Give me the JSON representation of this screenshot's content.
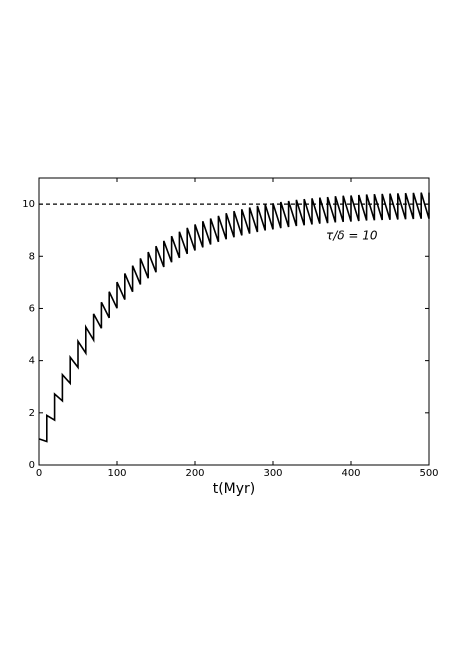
{
  "chart_data": {
    "type": "line",
    "xlabel": "t(Myr)",
    "annotation": "τ/δ = 10",
    "hline": 10,
    "xlim": [
      0,
      500
    ],
    "ylim": [
      0,
      11
    ],
    "xticks": [
      0,
      100,
      200,
      300,
      400,
      500
    ],
    "yticks": [
      0,
      2,
      4,
      6,
      8,
      10
    ],
    "series": [
      {
        "color": "#000000",
        "x": [
          0,
          10,
          10,
          20,
          20,
          30,
          30,
          40,
          40,
          50,
          50,
          60,
          60,
          70,
          70,
          80,
          80,
          90,
          90,
          100,
          100,
          110,
          110,
          120,
          120,
          130,
          130,
          140,
          140,
          150,
          150,
          160,
          160,
          170,
          170,
          180,
          180,
          190,
          190,
          200,
          200,
          210,
          210,
          220,
          220,
          230,
          230,
          240,
          240,
          250,
          250,
          260,
          260,
          270,
          270,
          280,
          280,
          290,
          290,
          300,
          300,
          310,
          310,
          320,
          320,
          330,
          330,
          340,
          340,
          350,
          350,
          360,
          360,
          370,
          370,
          380,
          380,
          390,
          390,
          400,
          400,
          410,
          410,
          420,
          420,
          430,
          430,
          440,
          440,
          450,
          450,
          460,
          460,
          470,
          470,
          480,
          480,
          490,
          490,
          500,
          500
        ],
        "values": [
          1,
          0.9,
          1.9,
          1.72,
          2.72,
          2.46,
          3.46,
          3.13,
          4.13,
          3.74,
          4.74,
          4.29,
          5.29,
          4.79,
          5.79,
          5.24,
          6.24,
          5.64,
          6.64,
          6.01,
          7.01,
          6.34,
          7.34,
          6.64,
          7.64,
          6.92,
          7.92,
          7.16,
          8.16,
          7.39,
          8.39,
          7.59,
          8.59,
          7.77,
          8.77,
          7.94,
          8.94,
          8.09,
          9.09,
          8.22,
          9.22,
          8.34,
          9.34,
          8.45,
          9.45,
          8.55,
          9.55,
          8.65,
          9.65,
          8.73,
          9.73,
          8.8,
          9.8,
          8.87,
          9.87,
          8.93,
          9.93,
          8.99,
          9.99,
          9.03,
          10.03,
          9.08,
          10.08,
          9.12,
          10.12,
          9.16,
          10.16,
          9.19,
          10.19,
          9.22,
          10.22,
          9.25,
          10.25,
          9.27,
          10.27,
          9.3,
          10.3,
          9.32,
          10.32,
          9.33,
          10.33,
          9.35,
          10.35,
          9.37,
          10.37,
          9.38,
          10.38,
          9.39,
          10.39,
          9.4,
          10.4,
          9.41,
          10.41,
          9.42,
          10.42,
          9.43,
          10.43,
          9.44,
          10.44,
          9.44,
          10.44
        ]
      }
    ]
  }
}
